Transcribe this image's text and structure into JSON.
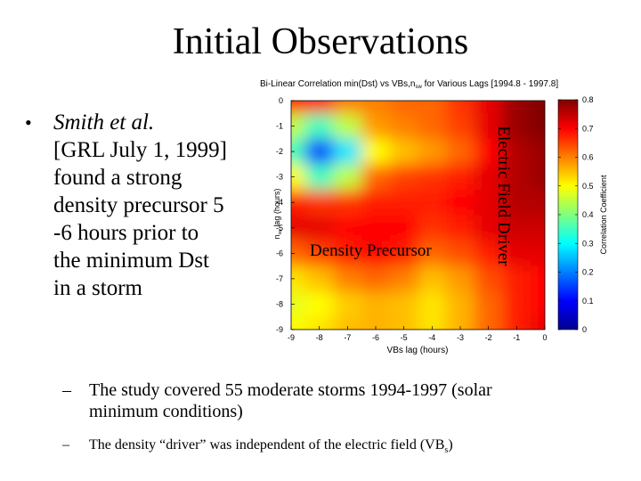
{
  "slide": {
    "title": "Initial Observations",
    "bullet": {
      "marker": "•",
      "author": "Smith et al.",
      "lines": [
        "[GRL July 1, 1999]",
        "found a strong",
        "density precursor 5",
        "-6 hours prior to",
        "the minimum Dst",
        "in a storm"
      ]
    },
    "subpoints": [
      {
        "dash": "–",
        "text": "The study covered 55 moderate storms 1994-1997 (solar minimum conditions)"
      },
      {
        "dash": "–",
        "text_before": "The density “driver” was independent of the electric field (VB",
        "sub": "s",
        "text_after": ")"
      }
    ]
  },
  "chart_data": {
    "type": "heatmap",
    "title": "Bi-Linear Correlation min(Dst) vs VBs,n",
    "title_sub": "sw",
    "title_rest": " for Various Lags [1994.8 - 1997.8]",
    "xlabel": "VBs lag (hours)",
    "ylabel": "n",
    "ylabel_sub": "sw",
    "ylabel_rest": " lag (hours)",
    "x_ticks": [
      -9,
      -8,
      -7,
      -6,
      -5,
      -4,
      -3,
      -2,
      -1,
      0
    ],
    "y_ticks": [
      0,
      -1,
      -2,
      -3,
      -4,
      -5,
      -6,
      -7,
      -8,
      -9
    ],
    "xlim": [
      -9,
      0
    ],
    "ylim": [
      -9,
      0
    ],
    "x_axis_values": [
      -9,
      -8,
      -7,
      -6,
      -5,
      -4,
      -3,
      -2,
      -1,
      0
    ],
    "y_axis_values": [
      0,
      -1,
      -2,
      -3,
      -4,
      -5,
      -6,
      -7,
      -8,
      -9
    ],
    "z_values": [
      [
        0.7,
        0.7,
        0.6,
        0.6,
        0.62,
        0.62,
        0.66,
        0.72,
        0.78,
        0.8
      ],
      [
        0.45,
        0.35,
        0.45,
        0.58,
        0.6,
        0.62,
        0.65,
        0.72,
        0.78,
        0.8
      ],
      [
        0.35,
        0.15,
        0.28,
        0.5,
        0.55,
        0.58,
        0.62,
        0.7,
        0.76,
        0.78
      ],
      [
        0.5,
        0.35,
        0.45,
        0.62,
        0.65,
        0.66,
        0.68,
        0.72,
        0.76,
        0.78
      ],
      [
        0.68,
        0.66,
        0.66,
        0.68,
        0.68,
        0.68,
        0.7,
        0.72,
        0.76,
        0.76
      ],
      [
        0.72,
        0.72,
        0.7,
        0.7,
        0.7,
        0.66,
        0.68,
        0.72,
        0.74,
        0.74
      ],
      [
        0.62,
        0.65,
        0.68,
        0.7,
        0.68,
        0.62,
        0.64,
        0.68,
        0.72,
        0.72
      ],
      [
        0.52,
        0.55,
        0.6,
        0.62,
        0.6,
        0.55,
        0.58,
        0.64,
        0.68,
        0.7
      ],
      [
        0.48,
        0.5,
        0.54,
        0.56,
        0.55,
        0.52,
        0.56,
        0.62,
        0.68,
        0.7
      ],
      [
        0.5,
        0.52,
        0.55,
        0.56,
        0.55,
        0.52,
        0.56,
        0.62,
        0.68,
        0.72
      ]
    ],
    "colorbar": {
      "label": "Correlation Coefficient",
      "range": [
        0,
        0.8
      ],
      "ticks": [
        0,
        0.1,
        0.2,
        0.3,
        0.4,
        0.5,
        0.6,
        0.7,
        0.8
      ]
    },
    "annotations": {
      "density": "Density Precursor",
      "electric": "Electric Field Driver"
    }
  }
}
